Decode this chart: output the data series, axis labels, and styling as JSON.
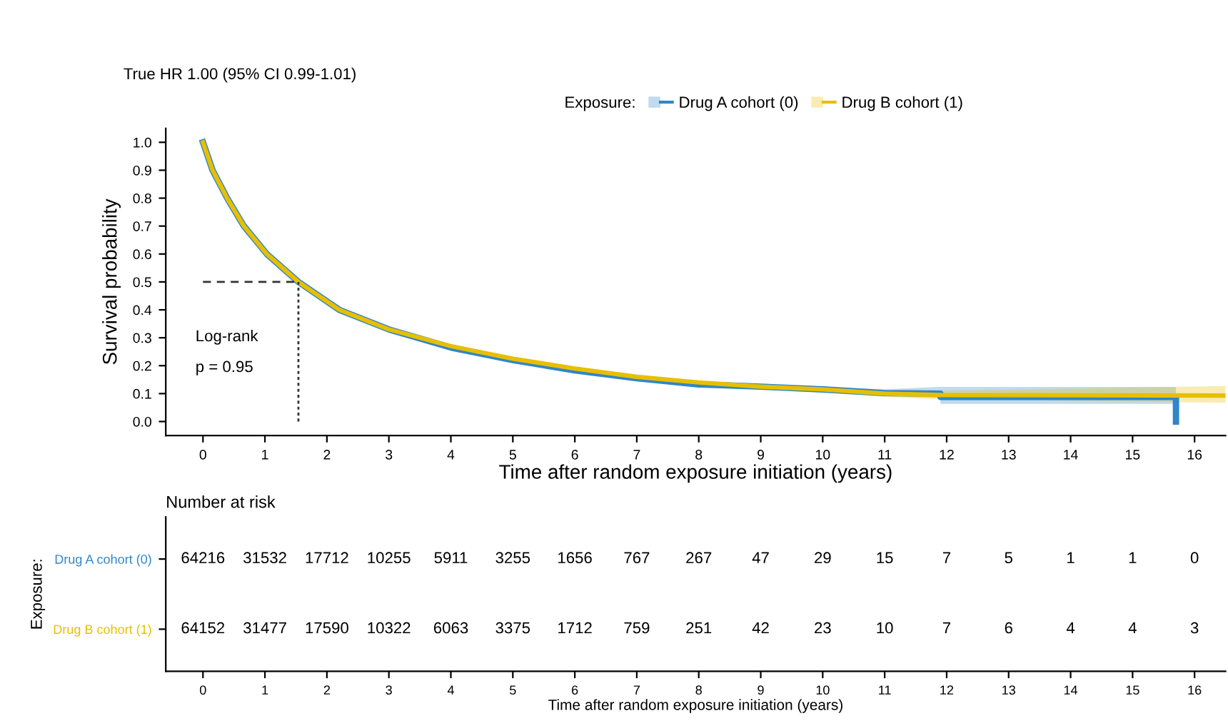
{
  "chart_data": [
    {
      "type": "line",
      "title": "True HR 1.00 (95% CI 0.99-1.01)",
      "xlabel": "Time after random exposure initiation (years)",
      "ylabel": "Survival probability",
      "legend_title": "Exposure:",
      "legend": "top",
      "xlim": [
        -0.6,
        16.5
      ],
      "xticks": [
        0,
        1,
        2,
        3,
        4,
        5,
        6,
        7,
        8,
        9,
        10,
        11,
        12,
        13,
        14,
        15,
        16
      ],
      "ylim": [
        -0.05,
        1.05
      ],
      "yticks": [
        {
          "value": 0,
          "label": "0.0"
        },
        0.1,
        0.2,
        0.3,
        0.4,
        0.5,
        0.6,
        0.7,
        0.8,
        0.9,
        {
          "value": 1,
          "label": "1.0"
        }
      ],
      "series": [
        {
          "name": "Drug A cohort (0)",
          "color": "#2f86c8",
          "x": [
            0,
            0.155,
            0.39,
            0.66,
            1.03,
            1.54,
            2.2,
            3,
            4,
            5,
            6,
            7,
            8,
            9,
            10,
            11,
            11.9,
            11.9,
            15.7,
            15.7
          ],
          "values": [
            1.0,
            0.9,
            0.8,
            0.7,
            0.6,
            0.5,
            0.4,
            0.33,
            0.265,
            0.22,
            0.183,
            0.155,
            0.133,
            0.125,
            0.115,
            0.102,
            0.1,
            0.088,
            0.088,
            0.0
          ],
          "lower": [
            1.0,
            0.895,
            0.795,
            0.695,
            0.595,
            0.495,
            0.395,
            0.325,
            0.26,
            0.215,
            0.178,
            0.15,
            0.128,
            0.118,
            0.105,
            0.09,
            0.085,
            0.063,
            0.063,
            0.0
          ],
          "upper": [
            1.0,
            0.905,
            0.805,
            0.705,
            0.605,
            0.505,
            0.405,
            0.335,
            0.27,
            0.225,
            0.188,
            0.16,
            0.138,
            0.132,
            0.125,
            0.115,
            0.124,
            0.124,
            0.124,
            0.0
          ]
        },
        {
          "name": "Drug B cohort (1)",
          "color": "#e7bf00",
          "x": [
            0,
            0.155,
            0.39,
            0.66,
            1.03,
            1.54,
            2.2,
            3,
            4,
            5,
            6,
            7,
            8,
            9,
            10,
            11,
            11.9,
            16.5
          ],
          "values": [
            1.0,
            0.9,
            0.8,
            0.7,
            0.6,
            0.5,
            0.4,
            0.33,
            0.27,
            0.225,
            0.19,
            0.16,
            0.14,
            0.125,
            0.115,
            0.1,
            0.095,
            0.093
          ],
          "lower": [
            1.0,
            0.895,
            0.795,
            0.695,
            0.595,
            0.495,
            0.395,
            0.325,
            0.265,
            0.22,
            0.185,
            0.155,
            0.135,
            0.118,
            0.105,
            0.088,
            0.08,
            0.067
          ],
          "upper": [
            1.0,
            0.905,
            0.805,
            0.705,
            0.605,
            0.505,
            0.405,
            0.335,
            0.275,
            0.23,
            0.195,
            0.165,
            0.145,
            0.132,
            0.125,
            0.112,
            0.11,
            0.127
          ]
        }
      ],
      "ref_lines": [
        {
          "axis": "y",
          "value": 0.5,
          "line_style": "dashed"
        },
        {
          "axis": "x",
          "value": 1.54,
          "line_style": "dotted"
        }
      ],
      "annotations": [
        "Log-rank",
        "p = 0.95"
      ]
    },
    {
      "type": "heatmap",
      "title": "Number at risk",
      "xlabel": "Time after random exposure initiation (years)",
      "ylabel": "Exposure:",
      "categories": [
        "0",
        "1",
        "2",
        "3",
        "4",
        "5",
        "6",
        "7",
        "8",
        "9",
        "10",
        "11",
        "12",
        "13",
        "14",
        "15",
        "16"
      ],
      "y_categories": [
        "Drug A cohort (0)",
        "Drug B cohort (1)"
      ],
      "cells": [
        [
          64216,
          31532,
          17712,
          10255,
          5911,
          3255,
          1656,
          767,
          267,
          47,
          29,
          15,
          7,
          5,
          1,
          1,
          0
        ],
        [
          64152,
          31477,
          17590,
          10322,
          6063,
          3375,
          1712,
          759,
          251,
          42,
          23,
          10,
          7,
          6,
          4,
          4,
          3
        ]
      ],
      "data_labels": true
    }
  ]
}
